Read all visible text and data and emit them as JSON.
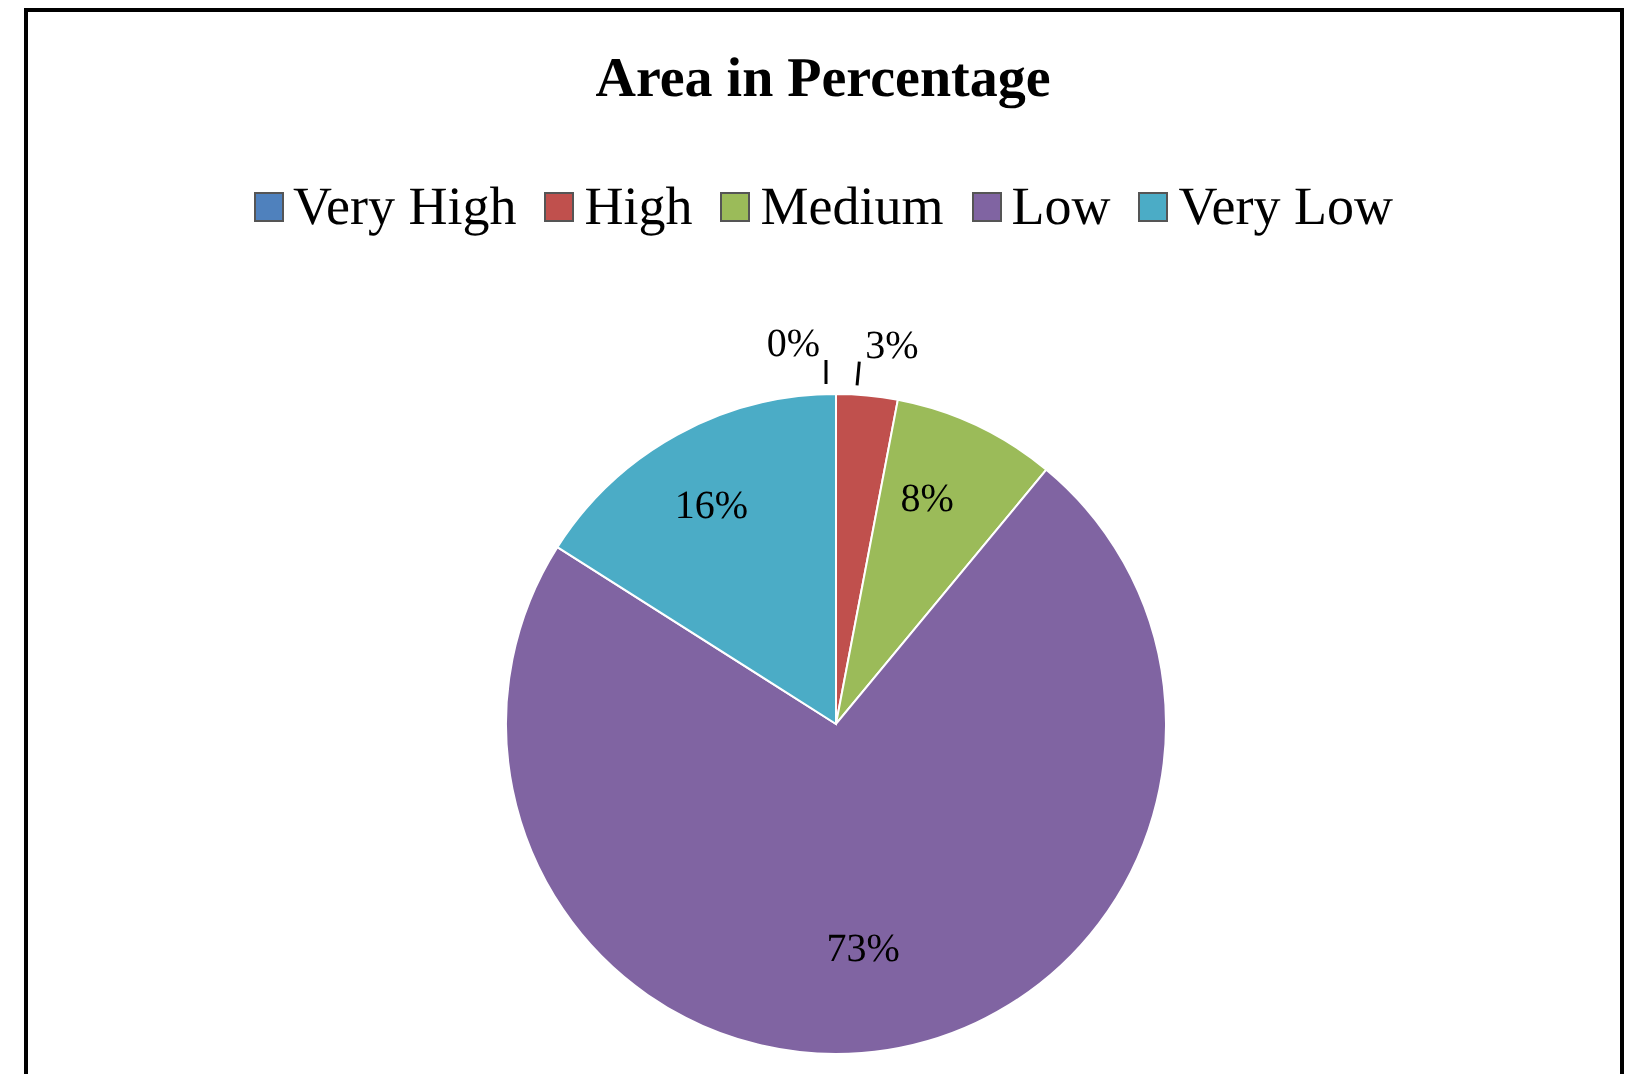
{
  "chart_data": {
    "type": "pie",
    "title": "Area in Percentage",
    "categories": [
      "Very High",
      "High",
      "Medium",
      "Low",
      "Very Low"
    ],
    "values": [
      0,
      3,
      8,
      73,
      16
    ],
    "colors": [
      "#4f81bd",
      "#c0504d",
      "#9bbb59",
      "#8064a2",
      "#4bacc6"
    ],
    "value_labels": [
      "0%",
      "3%",
      "8%",
      "73%",
      "16%"
    ],
    "legend": "top"
  }
}
